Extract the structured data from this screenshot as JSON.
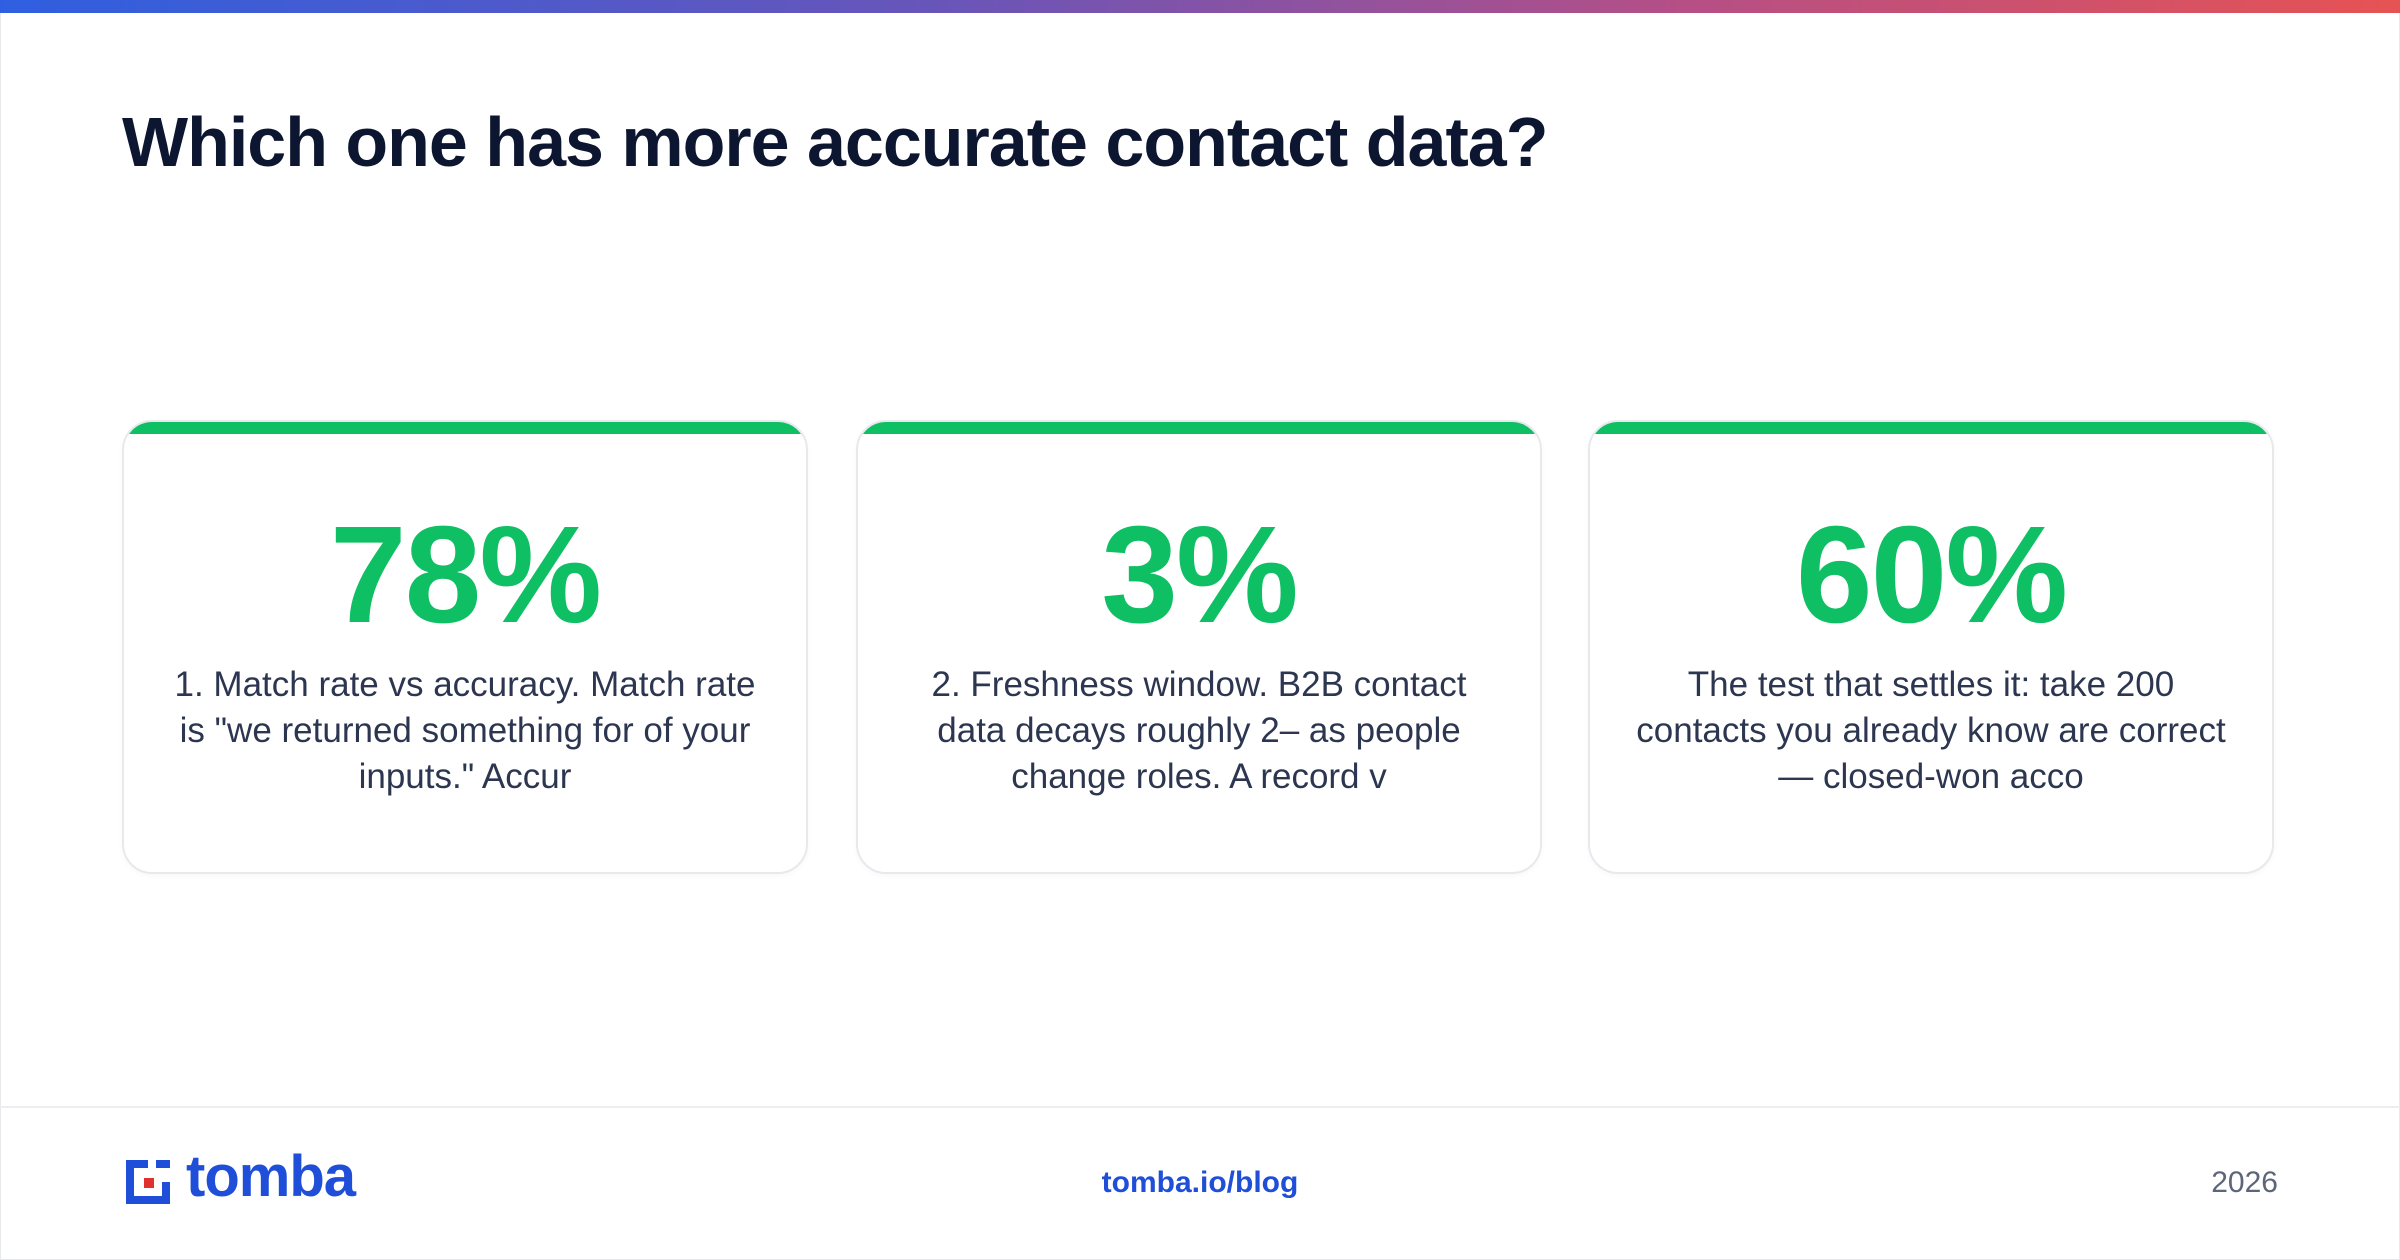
{
  "headline": "Which one has more accurate contact data?",
  "stats": [
    {
      "value": "78%",
      "text": "1. Match rate vs accuracy. Match rate is \"we returned something for of your inputs.\" Accur"
    },
    {
      "value": "3%",
      "text": "2. Freshness window. B2B contact data decays roughly 2– as people change roles. A record v"
    },
    {
      "value": "60%",
      "text": "The test that settles it: take 200 contacts you already know are correct — closed-won acco"
    }
  ],
  "footer": {
    "brand": "tomba",
    "url": "tomba.io/blog",
    "year": "2026"
  },
  "colors": {
    "accent": "#0fbf64",
    "brand": "#1f4ed8",
    "brand_red": "#e0312f",
    "heading": "#0d1630"
  }
}
